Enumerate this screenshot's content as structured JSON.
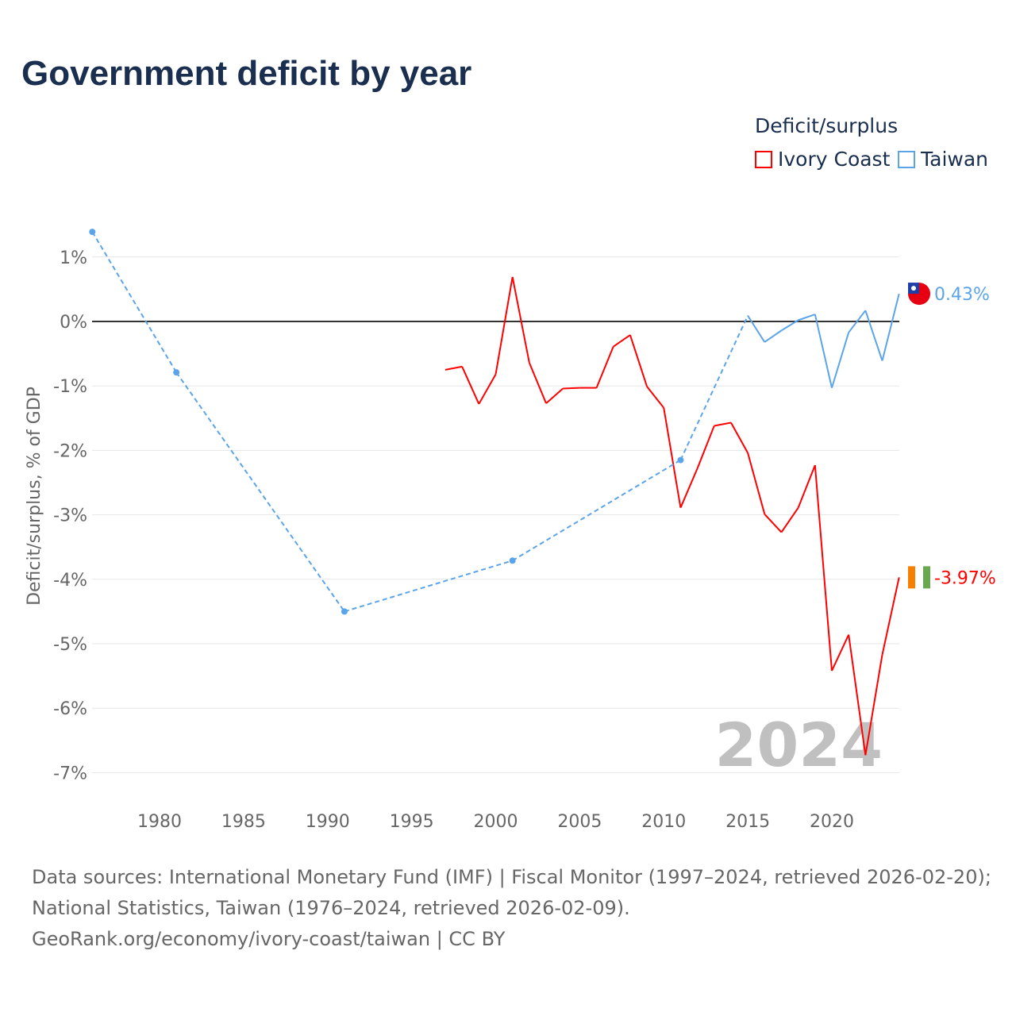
{
  "title": "Government deficit by year",
  "legend": {
    "title": "Deficit/surplus",
    "items": [
      {
        "name": "Ivory Coast",
        "color": "#ff0000"
      },
      {
        "name": "Taiwan",
        "color": "#5ba4ea"
      }
    ]
  },
  "sources": [
    "Data sources: International Monetary Fund (IMF) | Fiscal Monitor (1997–2024, retrieved 2026-02-20);",
    "National Statistics, Taiwan (1976–2024, retrieved 2026-02-09).",
    "GeoRank.org/economy/ivory-coast/taiwan | CC BY"
  ],
  "chart_data": {
    "type": "line",
    "ylabel": "Deficit/surplus, % of GDP",
    "xlim": [
      1976,
      2024
    ],
    "ylim": [
      -7,
      1
    ],
    "yticks": [
      1,
      0,
      -1,
      -2,
      -3,
      -4,
      -5,
      -6,
      -7
    ],
    "ytick_labels": [
      "1%",
      "0%",
      "-1%",
      "-2%",
      "-3%",
      "-4%",
      "-5%",
      "-6%",
      "-7%"
    ],
    "xticks": [
      1980,
      1985,
      1990,
      1995,
      2000,
      2005,
      2010,
      2015,
      2020
    ],
    "watermark": "2024",
    "series": [
      {
        "name": "Ivory Coast",
        "color": "#ff0000",
        "end_label": "-3.97%",
        "x": [
          1997,
          1998,
          1999,
          2000,
          2001,
          2002,
          2003,
          2004,
          2005,
          2006,
          2007,
          2008,
          2009,
          2010,
          2011,
          2012,
          2013,
          2014,
          2015,
          2016,
          2017,
          2018,
          2019,
          2020,
          2021,
          2022,
          2023,
          2024
        ],
        "y": [
          -0.75,
          -0.7,
          -1.28,
          -0.82,
          0.69,
          -0.64,
          -1.27,
          -1.04,
          -1.03,
          -1.03,
          -0.39,
          -0.21,
          -1.01,
          -1.34,
          -2.89,
          -2.28,
          -1.62,
          -1.57,
          -2.04,
          -2.99,
          -3.27,
          -2.89,
          -2.23,
          -5.42,
          -4.86,
          -6.73,
          -5.17,
          -3.97
        ]
      },
      {
        "name": "Taiwan",
        "color": "#5ba4ea",
        "end_label": "0.43%",
        "x": [
          1976,
          1981,
          1991,
          2001,
          2011,
          2015,
          2016,
          2017,
          2018,
          2019,
          2020,
          2021,
          2022,
          2023,
          2024
        ],
        "y": [
          1.39,
          -0.79,
          -4.5,
          -3.71,
          -2.15,
          0.09,
          -0.32,
          -0.14,
          0.02,
          0.11,
          -1.03,
          -0.17,
          0.17,
          -0.61,
          0.43
        ]
      }
    ]
  }
}
